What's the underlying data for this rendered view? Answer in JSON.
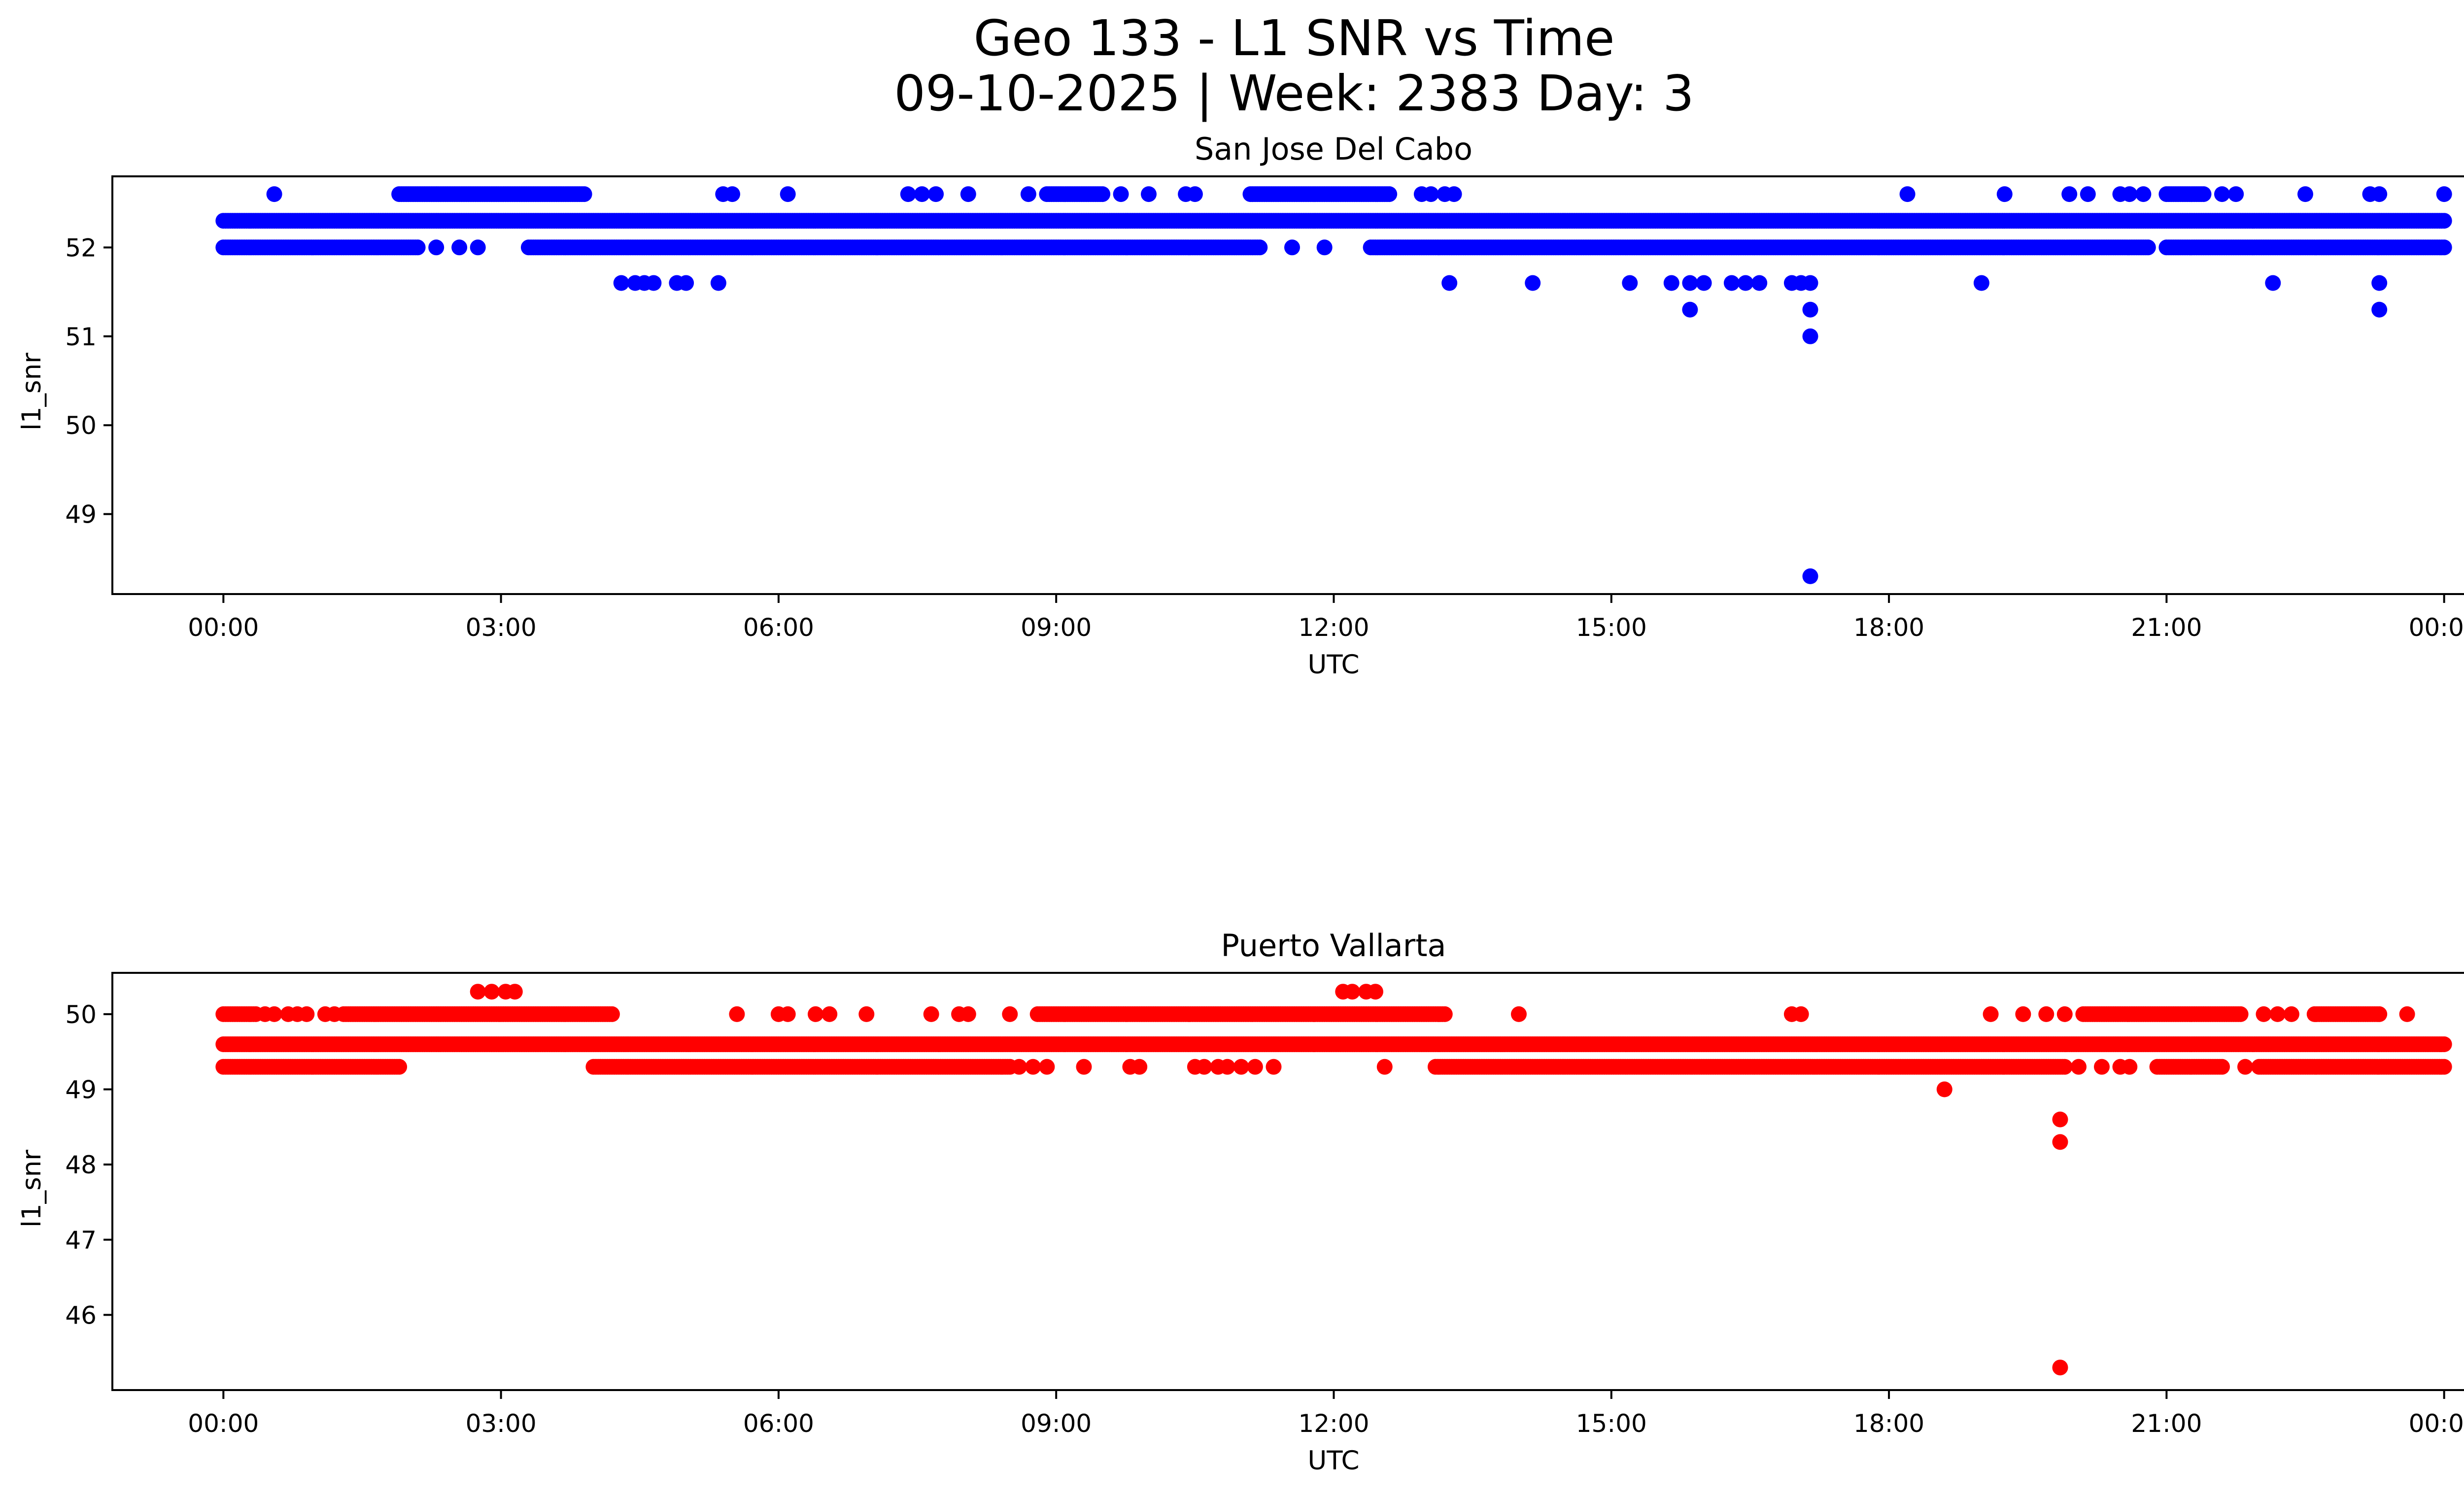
{
  "chart_data": {
    "type": "scatter",
    "title_line1": "Geo 133 - L1 SNR vs Time",
    "title_line2": "09-10-2025 | Week: 2383 Day: 3",
    "subplots": [
      {
        "id": "sjd",
        "title": "San Jose Del Cabo",
        "xlabel": "UTC",
        "ylabel": "l1_snr",
        "color": "#0000ff",
        "xlim": [
          -1.2,
          25.2
        ],
        "ylim": [
          48.1,
          52.8
        ],
        "xticks": [
          0,
          3,
          6,
          9,
          12,
          15,
          18,
          21,
          24
        ],
        "xtick_labels": [
          "00:00",
          "03:00",
          "06:00",
          "09:00",
          "12:00",
          "15:00",
          "18:00",
          "21:00",
          "00:00"
        ],
        "yticks": [
          49,
          50,
          51,
          52
        ],
        "ytick_labels": [
          "49",
          "50",
          "51",
          "52"
        ],
        "bands": [
          {
            "y": 52.3,
            "from": 0.0,
            "to": 24.0
          },
          {
            "y": 52.0,
            "from": 0.0,
            "to": 2.1
          },
          {
            "y": 52.0,
            "from": 3.3,
            "to": 11.2
          },
          {
            "y": 52.0,
            "from": 12.4,
            "to": 20.8
          },
          {
            "y": 52.0,
            "from": 21.0,
            "to": 24.0
          },
          {
            "y": 52.6,
            "from": 1.9,
            "to": 3.9
          },
          {
            "y": 52.6,
            "from": 8.9,
            "to": 9.5
          },
          {
            "y": 52.6,
            "from": 11.1,
            "to": 12.6
          },
          {
            "y": 52.6,
            "from": 21.0,
            "to": 21.4
          }
        ],
        "points": [
          {
            "x": 0.55,
            "y": 52.6
          },
          {
            "x": 5.4,
            "y": 52.6
          },
          {
            "x": 5.5,
            "y": 52.6
          },
          {
            "x": 6.1,
            "y": 52.6
          },
          {
            "x": 7.4,
            "y": 52.6
          },
          {
            "x": 7.55,
            "y": 52.6
          },
          {
            "x": 7.7,
            "y": 52.6
          },
          {
            "x": 8.05,
            "y": 52.6
          },
          {
            "x": 8.7,
            "y": 52.6
          },
          {
            "x": 9.7,
            "y": 52.6
          },
          {
            "x": 10.0,
            "y": 52.6
          },
          {
            "x": 10.4,
            "y": 52.6
          },
          {
            "x": 10.5,
            "y": 52.6
          },
          {
            "x": 12.95,
            "y": 52.6
          },
          {
            "x": 13.05,
            "y": 52.6
          },
          {
            "x": 13.2,
            "y": 52.6
          },
          {
            "x": 13.3,
            "y": 52.6
          },
          {
            "x": 18.2,
            "y": 52.6
          },
          {
            "x": 19.25,
            "y": 52.6
          },
          {
            "x": 19.95,
            "y": 52.6
          },
          {
            "x": 20.15,
            "y": 52.6
          },
          {
            "x": 20.5,
            "y": 52.6
          },
          {
            "x": 20.6,
            "y": 52.6
          },
          {
            "x": 20.75,
            "y": 52.6
          },
          {
            "x": 21.6,
            "y": 52.6
          },
          {
            "x": 21.75,
            "y": 52.6
          },
          {
            "x": 22.5,
            "y": 52.6
          },
          {
            "x": 23.2,
            "y": 52.6
          },
          {
            "x": 23.3,
            "y": 52.6
          },
          {
            "x": 24.0,
            "y": 52.6
          },
          {
            "x": 2.3,
            "y": 52.0
          },
          {
            "x": 2.55,
            "y": 52.0
          },
          {
            "x": 2.75,
            "y": 52.0
          },
          {
            "x": 11.55,
            "y": 52.0
          },
          {
            "x": 11.9,
            "y": 52.0
          },
          {
            "x": 4.3,
            "y": 51.6
          },
          {
            "x": 4.45,
            "y": 51.6
          },
          {
            "x": 4.55,
            "y": 51.6
          },
          {
            "x": 4.65,
            "y": 51.6
          },
          {
            "x": 4.9,
            "y": 51.6
          },
          {
            "x": 5.0,
            "y": 51.6
          },
          {
            "x": 5.35,
            "y": 51.6
          },
          {
            "x": 13.25,
            "y": 51.6
          },
          {
            "x": 14.15,
            "y": 51.6
          },
          {
            "x": 15.2,
            "y": 51.6
          },
          {
            "x": 15.65,
            "y": 51.6
          },
          {
            "x": 15.85,
            "y": 51.6
          },
          {
            "x": 16.0,
            "y": 51.6
          },
          {
            "x": 16.3,
            "y": 51.6
          },
          {
            "x": 16.45,
            "y": 51.6
          },
          {
            "x": 16.6,
            "y": 51.6
          },
          {
            "x": 16.95,
            "y": 51.6
          },
          {
            "x": 17.05,
            "y": 51.6
          },
          {
            "x": 17.15,
            "y": 51.6
          },
          {
            "x": 19.0,
            "y": 51.6
          },
          {
            "x": 22.15,
            "y": 51.6
          },
          {
            "x": 23.3,
            "y": 51.6
          },
          {
            "x": 15.85,
            "y": 51.3
          },
          {
            "x": 17.15,
            "y": 51.3
          },
          {
            "x": 23.3,
            "y": 51.3
          },
          {
            "x": 17.15,
            "y": 51.0
          },
          {
            "x": 17.15,
            "y": 48.3
          }
        ]
      },
      {
        "id": "pvr",
        "title": "Puerto Vallarta",
        "xlabel": "UTC",
        "ylabel": "l1_snr",
        "color": "#ff0000",
        "xlim": [
          -1.2,
          25.2
        ],
        "ylim": [
          45.0,
          50.55
        ],
        "xticks": [
          0,
          3,
          6,
          9,
          12,
          15,
          18,
          21,
          24
        ],
        "xtick_labels": [
          "00:00",
          "03:00",
          "06:00",
          "09:00",
          "12:00",
          "15:00",
          "18:00",
          "21:00",
          "00:00"
        ],
        "yticks": [
          46,
          47,
          48,
          49,
          50
        ],
        "ytick_labels": [
          "46",
          "47",
          "48",
          "49",
          "50"
        ],
        "bands": [
          {
            "y": 49.6,
            "from": 0.0,
            "to": 24.0
          },
          {
            "y": 49.3,
            "from": 0.0,
            "to": 1.9
          },
          {
            "y": 49.3,
            "from": 4.0,
            "to": 8.5
          },
          {
            "y": 49.3,
            "from": 13.1,
            "to": 19.9
          },
          {
            "y": 49.3,
            "from": 20.9,
            "to": 21.6
          },
          {
            "y": 49.3,
            "from": 22.0,
            "to": 24.0
          },
          {
            "y": 50.0,
            "from": 0.0,
            "to": 0.35
          },
          {
            "y": 50.0,
            "from": 1.3,
            "to": 4.2
          },
          {
            "y": 50.0,
            "from": 8.8,
            "to": 13.2
          },
          {
            "y": 50.0,
            "from": 20.1,
            "to": 21.8
          },
          {
            "y": 50.0,
            "from": 22.6,
            "to": 23.3
          }
        ],
        "points": [
          {
            "x": 0.45,
            "y": 50.0
          },
          {
            "x": 0.55,
            "y": 50.0
          },
          {
            "x": 0.7,
            "y": 50.0
          },
          {
            "x": 0.8,
            "y": 50.0
          },
          {
            "x": 0.9,
            "y": 50.0
          },
          {
            "x": 1.1,
            "y": 50.0
          },
          {
            "x": 1.2,
            "y": 50.0
          },
          {
            "x": 5.55,
            "y": 50.0
          },
          {
            "x": 6.0,
            "y": 50.0
          },
          {
            "x": 6.1,
            "y": 50.0
          },
          {
            "x": 6.4,
            "y": 50.0
          },
          {
            "x": 6.55,
            "y": 50.0
          },
          {
            "x": 6.95,
            "y": 50.0
          },
          {
            "x": 7.65,
            "y": 50.0
          },
          {
            "x": 7.95,
            "y": 50.0
          },
          {
            "x": 8.05,
            "y": 50.0
          },
          {
            "x": 8.5,
            "y": 50.0
          },
          {
            "x": 14.0,
            "y": 50.0
          },
          {
            "x": 16.95,
            "y": 50.0
          },
          {
            "x": 17.05,
            "y": 50.0
          },
          {
            "x": 19.1,
            "y": 50.0
          },
          {
            "x": 19.45,
            "y": 50.0
          },
          {
            "x": 19.7,
            "y": 50.0
          },
          {
            "x": 19.9,
            "y": 50.0
          },
          {
            "x": 22.05,
            "y": 50.0
          },
          {
            "x": 22.2,
            "y": 50.0
          },
          {
            "x": 22.35,
            "y": 50.0
          },
          {
            "x": 23.6,
            "y": 50.0
          },
          {
            "x": 2.75,
            "y": 50.3
          },
          {
            "x": 2.9,
            "y": 50.3
          },
          {
            "x": 3.05,
            "y": 50.3
          },
          {
            "x": 3.15,
            "y": 50.3
          },
          {
            "x": 12.1,
            "y": 50.3
          },
          {
            "x": 12.2,
            "y": 50.3
          },
          {
            "x": 12.35,
            "y": 50.3
          },
          {
            "x": 12.45,
            "y": 50.3
          },
          {
            "x": 8.6,
            "y": 49.3
          },
          {
            "x": 8.75,
            "y": 49.3
          },
          {
            "x": 8.9,
            "y": 49.3
          },
          {
            "x": 9.3,
            "y": 49.3
          },
          {
            "x": 9.8,
            "y": 49.3
          },
          {
            "x": 9.9,
            "y": 49.3
          },
          {
            "x": 10.5,
            "y": 49.3
          },
          {
            "x": 10.6,
            "y": 49.3
          },
          {
            "x": 10.75,
            "y": 49.3
          },
          {
            "x": 10.85,
            "y": 49.3
          },
          {
            "x": 11.0,
            "y": 49.3
          },
          {
            "x": 11.15,
            "y": 49.3
          },
          {
            "x": 11.35,
            "y": 49.3
          },
          {
            "x": 12.55,
            "y": 49.3
          },
          {
            "x": 20.05,
            "y": 49.3
          },
          {
            "x": 20.3,
            "y": 49.3
          },
          {
            "x": 20.5,
            "y": 49.3
          },
          {
            "x": 20.6,
            "y": 49.3
          },
          {
            "x": 21.85,
            "y": 49.3
          },
          {
            "x": 18.6,
            "y": 49.0
          },
          {
            "x": 19.85,
            "y": 48.6
          },
          {
            "x": 19.85,
            "y": 48.3
          },
          {
            "x": 19.85,
            "y": 45.3
          }
        ]
      }
    ]
  }
}
